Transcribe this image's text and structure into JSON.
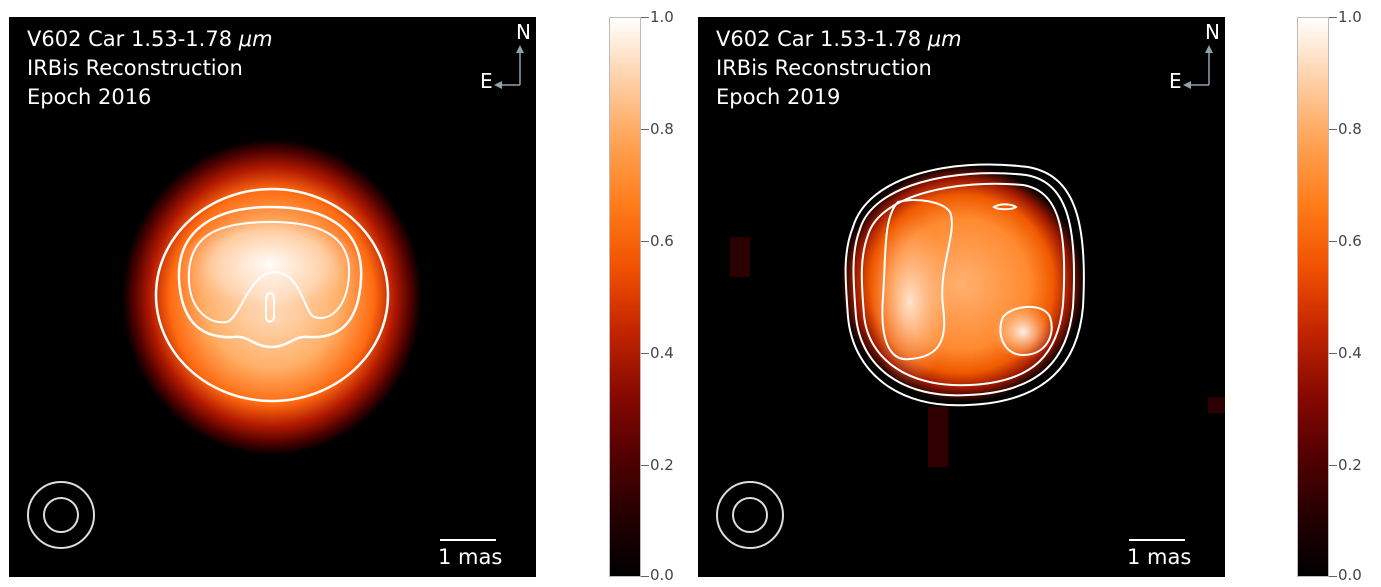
{
  "panels": [
    {
      "line1": "V602 Car 1.53-1.78",
      "unit": "μm",
      "line2": "IRBis Reconstruction",
      "line3": "Epoch 2016",
      "compass_n": "N",
      "compass_e": "E",
      "scale_label": "1 mas"
    },
    {
      "line1": "V602 Car 1.53-1.78",
      "unit": "μm",
      "line2": "IRBis Reconstruction",
      "line3": "Epoch 2019",
      "compass_n": "N",
      "compass_e": "E",
      "scale_label": "1 mas"
    }
  ],
  "colorbar_ticks": [
    "0.0",
    "0.2",
    "0.4",
    "0.6",
    "0.8",
    "1.0"
  ],
  "colors": {
    "background": "#000000",
    "contour": "#ffffff",
    "compass_arrow": "#8fa3ad"
  }
}
